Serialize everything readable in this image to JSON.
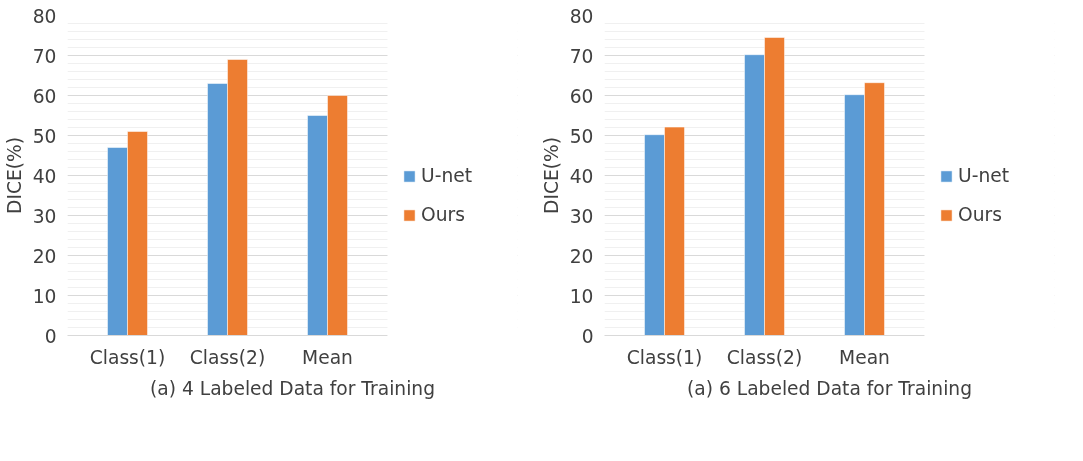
{
  "chart_data": [
    {
      "type": "bar",
      "title": "(a) 4 Labeled Data for Training",
      "ylabel": "DICE(%)",
      "categories": [
        "Class(1)",
        "Class(2)",
        "Mean"
      ],
      "series": [
        {
          "name": "U-net",
          "color": "#5b9bd5",
          "values": [
            47,
            63,
            55
          ]
        },
        {
          "name": "Ours",
          "color": "#ed7d31",
          "values": [
            51,
            69,
            60
          ]
        }
      ],
      "ylim": [
        0,
        80
      ],
      "yticks": [
        0,
        10,
        20,
        30,
        40,
        50,
        60,
        70,
        80
      ],
      "grid": "y",
      "legend": "right"
    },
    {
      "type": "bar",
      "title": "(a) 6 Labeled Data for Training",
      "ylabel": "DICE(%)",
      "categories": [
        "Class(1)",
        "Class(2)",
        "Mean"
      ],
      "series": [
        {
          "name": "U-net",
          "color": "#5b9bd5",
          "values": [
            50.2,
            70.2,
            60.2
          ]
        },
        {
          "name": "Ours",
          "color": "#ed7d31",
          "values": [
            52.1,
            74.5,
            63.2
          ]
        }
      ],
      "ylim": [
        0,
        80
      ],
      "yticks": [
        0,
        10,
        20,
        30,
        40,
        50,
        60,
        70,
        80
      ],
      "grid": "y",
      "legend": "right"
    }
  ]
}
